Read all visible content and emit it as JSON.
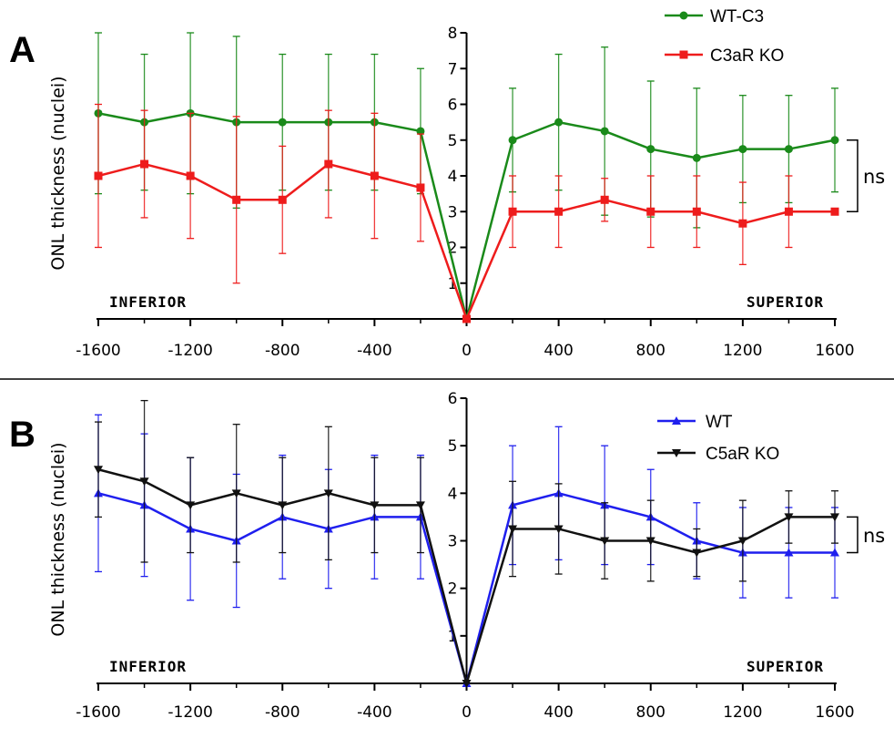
{
  "colors": {
    "wt_c3": "#1a8a1a",
    "c3ar_ko": "#ee1c1c",
    "wt": "#1f1fee",
    "c5ar_ko": "#111111"
  },
  "chart_data": [
    {
      "type": "line",
      "panel_label": "A",
      "ylabel": "ONL thickness (nuclei)",
      "left_region": "INFERIOR",
      "right_region": "SUPERIOR",
      "ylim": [
        0,
        8
      ],
      "yticks": [
        "1",
        "2",
        "3",
        "4",
        "5",
        "6",
        "7",
        "8"
      ],
      "xticks": [
        "-1600",
        "-1200",
        "-800",
        "-400",
        "0",
        "400",
        "800",
        "1200",
        "1600"
      ],
      "x": [
        -1600,
        -1400,
        -1200,
        -1000,
        -800,
        -600,
        -400,
        -200,
        0,
        200,
        400,
        600,
        800,
        1000,
        1200,
        1400,
        1600
      ],
      "significance": "ns",
      "series": [
        {
          "name": "WT-C3",
          "marker": "circle",
          "color": "#1a8a1a",
          "values": [
            5.75,
            5.5,
            5.75,
            5.5,
            5.5,
            5.5,
            5.5,
            5.25,
            0,
            5.0,
            5.5,
            5.25,
            4.75,
            4.5,
            4.75,
            4.75,
            5.0
          ],
          "err_up": [
            2.25,
            1.9,
            2.25,
            2.4,
            1.9,
            1.9,
            1.9,
            1.75,
            0,
            1.45,
            1.9,
            2.35,
            1.9,
            1.95,
            1.5,
            1.5,
            1.45
          ],
          "err_down": [
            2.25,
            1.9,
            2.25,
            2.4,
            1.9,
            1.9,
            1.9,
            1.75,
            0,
            1.45,
            1.9,
            2.35,
            1.9,
            1.95,
            1.5,
            1.5,
            1.45
          ]
        },
        {
          "name": "C3aR KO",
          "marker": "square",
          "color": "#ee1c1c",
          "values": [
            4.0,
            4.33,
            4.0,
            3.33,
            3.33,
            4.33,
            4.0,
            3.67,
            0,
            3.0,
            3.0,
            3.33,
            3.0,
            3.0,
            2.67,
            3.0,
            3.0
          ],
          "err_up": [
            2.0,
            1.5,
            1.75,
            2.33,
            1.5,
            1.5,
            1.75,
            1.5,
            0,
            1.0,
            1.0,
            0.6,
            1.0,
            1.0,
            1.15,
            1.0,
            0
          ],
          "err_down": [
            2.0,
            1.5,
            1.75,
            2.33,
            1.5,
            1.5,
            1.75,
            1.5,
            0,
            1.0,
            1.0,
            0.6,
            1.0,
            1.0,
            1.15,
            1.0,
            0
          ]
        }
      ]
    },
    {
      "type": "line",
      "panel_label": "B",
      "ylabel": "ONL thickness (nuclei)",
      "left_region": "INFERIOR",
      "right_region": "SUPERIOR",
      "ylim": [
        0,
        6
      ],
      "yticks": [
        "1",
        "2",
        "3",
        "4",
        "5",
        "6"
      ],
      "xticks": [
        "-1600",
        "-1200",
        "-800",
        "-400",
        "0",
        "400",
        "800",
        "1200",
        "1600"
      ],
      "x": [
        -1600,
        -1400,
        -1200,
        -1000,
        -800,
        -600,
        -400,
        -200,
        0,
        200,
        400,
        600,
        800,
        1000,
        1200,
        1400,
        1600
      ],
      "significance": "ns",
      "series": [
        {
          "name": "WT",
          "marker": "triangle-up",
          "color": "#1f1fee",
          "values": [
            4.0,
            3.75,
            3.25,
            3.0,
            3.5,
            3.25,
            3.5,
            3.5,
            0,
            3.75,
            4.0,
            3.75,
            3.5,
            3.0,
            2.75,
            2.75,
            2.75
          ],
          "err_up": [
            1.65,
            1.5,
            1.5,
            1.4,
            1.3,
            1.25,
            1.3,
            1.3,
            0,
            1.25,
            1.4,
            1.25,
            1.0,
            0.8,
            0.95,
            0.95,
            0.95
          ],
          "err_down": [
            1.65,
            1.5,
            1.5,
            1.4,
            1.3,
            1.25,
            1.3,
            1.3,
            0,
            1.25,
            1.4,
            1.25,
            1.0,
            0.8,
            0.95,
            0.95,
            0.95
          ]
        },
        {
          "name": "C5aR KO",
          "marker": "triangle-down",
          "color": "#111111",
          "values": [
            4.5,
            4.25,
            3.75,
            4.0,
            3.75,
            4.0,
            3.75,
            3.75,
            0,
            3.25,
            3.25,
            3.0,
            3.0,
            2.75,
            3.0,
            3.5,
            3.5
          ],
          "err_up": [
            1.0,
            1.7,
            1.0,
            1.45,
            1.0,
            1.4,
            1.0,
            1.0,
            0,
            1.0,
            0.95,
            0.8,
            0.85,
            0.5,
            0.85,
            0.55,
            0.55
          ],
          "err_down": [
            1.0,
            1.7,
            1.0,
            1.45,
            1.0,
            1.4,
            1.0,
            1.0,
            0,
            1.0,
            0.95,
            0.8,
            0.85,
            0.5,
            0.85,
            0.55,
            0.55
          ]
        }
      ]
    }
  ]
}
